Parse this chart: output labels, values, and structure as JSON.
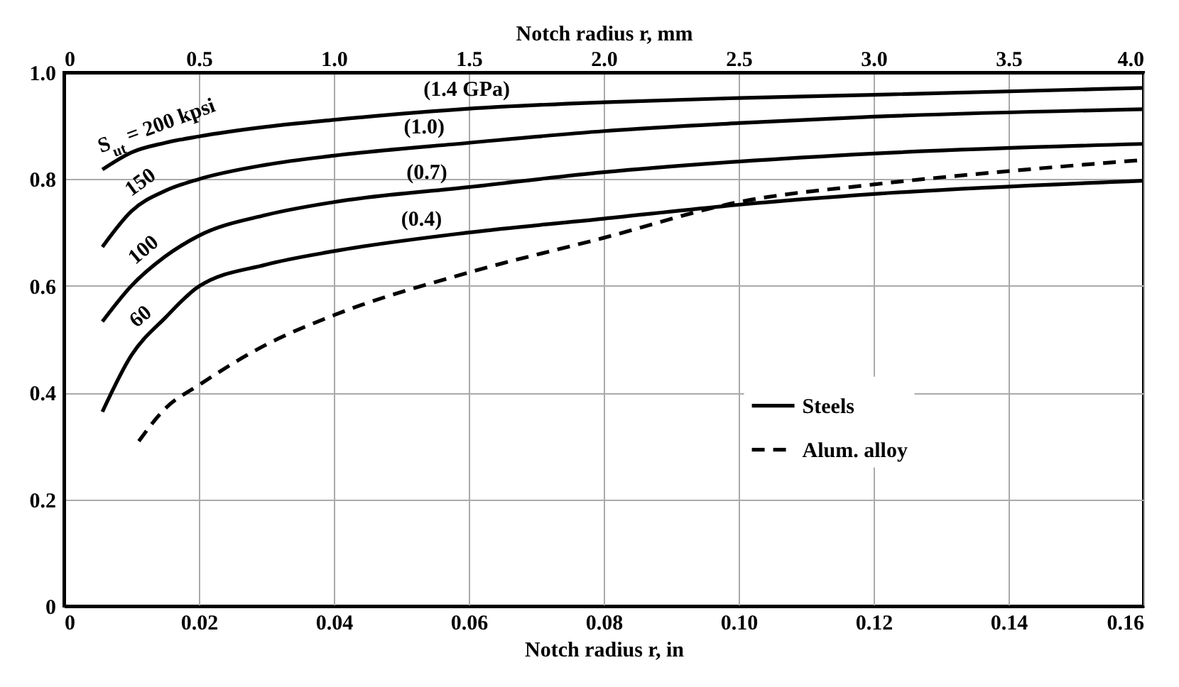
{
  "chart_data": {
    "type": "line",
    "xlabel": "Notch radius r, in",
    "x2label": "Notch radius r, mm",
    "xlim": [
      0,
      0.16
    ],
    "xticks": [
      0,
      0.02,
      0.04,
      0.06,
      0.08,
      {
        "value": 0.1,
        "label": "0.10"
      },
      0.12,
      0.14,
      0.16
    ],
    "x2lim": [
      0,
      4
    ],
    "x2ticks": [
      0,
      0.5,
      {
        "value": 1,
        "label": "1.0"
      },
      1.5,
      {
        "value": 2,
        "label": "2.0"
      },
      2.5,
      {
        "value": 3,
        "label": "3.0"
      },
      3.5,
      {
        "value": 4,
        "label": "4.0"
      }
    ],
    "ylim": [
      0,
      1
    ],
    "yticks": [
      0,
      0.2,
      0.4,
      0.6,
      0.8,
      {
        "value": 1,
        "label": "1.0"
      }
    ],
    "grid": true,
    "legend": "right",
    "series": [
      {
        "name": "Steels",
        "color": "#000000",
        "line_style": "solid",
        "x": [
          0.0057,
          0.01,
          0.015,
          0.02,
          0.03,
          0.04,
          0.06,
          0.08,
          0.1,
          0.12,
          0.16
        ],
        "values": [
          0.818,
          0.85,
          0.868,
          0.88,
          0.898,
          0.911,
          0.932,
          0.944,
          0.952,
          0.958,
          0.971
        ]
      },
      {
        "color": "#000000",
        "line_style": "solid",
        "x": [
          0.0057,
          0.01,
          0.015,
          0.02,
          0.03,
          0.04,
          0.06,
          0.08,
          0.1,
          0.12,
          0.16
        ],
        "values": [
          0.673,
          0.74,
          0.778,
          0.8,
          0.827,
          0.844,
          0.868,
          0.89,
          0.905,
          0.917,
          0.931
        ]
      },
      {
        "color": "#000000",
        "line_style": "solid",
        "x": [
          0.0057,
          0.01,
          0.015,
          0.02,
          0.03,
          0.04,
          0.06,
          0.08,
          0.1,
          0.12,
          0.16
        ],
        "values": [
          0.533,
          0.6,
          0.655,
          0.694,
          0.733,
          0.757,
          0.785,
          0.813,
          0.833,
          0.848,
          0.866
        ]
      },
      {
        "color": "#000000",
        "line_style": "solid",
        "x": [
          0.0057,
          0.01,
          0.015,
          0.02,
          0.03,
          0.04,
          0.06,
          0.08,
          0.1,
          0.12,
          0.16
        ],
        "values": [
          0.364,
          0.47,
          0.54,
          0.599,
          0.64,
          0.665,
          0.7,
          0.726,
          0.752,
          0.772,
          0.797
        ]
      },
      {
        "name": "Alum. alloy",
        "color": "#000000",
        "line_style": "dashed",
        "x": [
          0.0111,
          0.015,
          0.02,
          0.03,
          0.04,
          0.06,
          0.08,
          0.1,
          0.12,
          0.14,
          0.16
        ],
        "values": [
          0.309,
          0.37,
          0.414,
          0.49,
          0.545,
          0.625,
          0.69,
          0.757,
          0.79,
          0.815,
          0.836
        ]
      }
    ],
    "annotations": [
      {
        "text": "S$_{ut}$ = 200 kpsi",
        "x": 0.0147,
        "y": 0.866
      },
      {
        "text": "150",
        "x": 0.013,
        "y": 0.765
      },
      {
        "text": "100",
        "x": 0.0136,
        "y": 0.64
      },
      {
        "text": "60",
        "x": 0.0132,
        "y": 0.515
      },
      {
        "text": "(1.4 GPa)",
        "x": 0.0597,
        "y": 0.932
      },
      {
        "text": "(1.0)",
        "x": 0.0534,
        "y": 0.862
      },
      {
        "text": "(0.7)",
        "x": 0.0538,
        "y": 0.776
      },
      {
        "text": "(0.4)",
        "x": 0.053,
        "y": 0.689
      }
    ]
  }
}
